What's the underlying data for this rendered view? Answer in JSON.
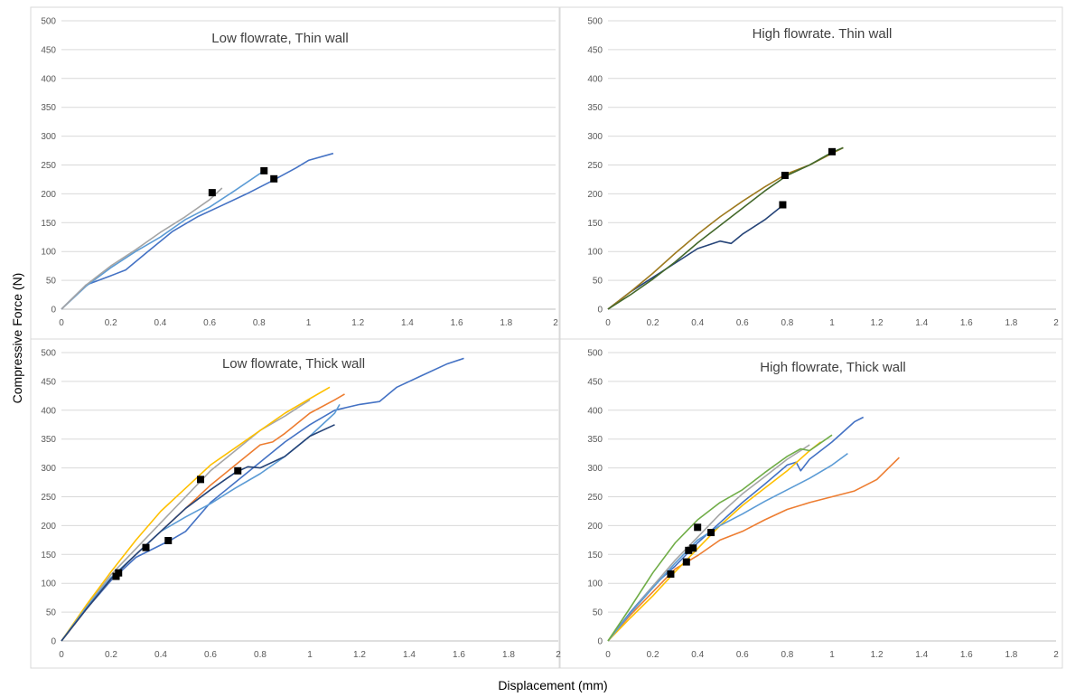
{
  "figure": {
    "ylabel": "Compressive Force (N)",
    "xlabel": "Displacement (mm)"
  },
  "chart_data": [
    {
      "type": "line",
      "title": "Low flowrate, Thin wall",
      "xlim": [
        0,
        2
      ],
      "ylim": [
        0,
        500
      ],
      "xticks": [
        "0",
        "0.2",
        "0.4",
        "0.6",
        "0.8",
        "1",
        "1.2",
        "1.4",
        "1.6",
        "1.8",
        "2"
      ],
      "yticks": [
        "0",
        "50",
        "100",
        "150",
        "200",
        "250",
        "300",
        "350",
        "400",
        "450",
        "500"
      ],
      "grid": true,
      "series": [
        {
          "color": "#4472C4",
          "points": [
            [
              0,
              0
            ],
            [
              0.1,
              42
            ],
            [
              0.2,
              58
            ],
            [
              0.26,
              68
            ],
            [
              0.35,
              100
            ],
            [
              0.45,
              135
            ],
            [
              0.55,
              160
            ],
            [
              0.65,
              180
            ],
            [
              0.75,
              200
            ],
            [
              0.85,
              222
            ],
            [
              0.95,
              245
            ],
            [
              1.0,
              258
            ],
            [
              1.1,
              270
            ]
          ],
          "marker": [
            0.86,
            226
          ]
        },
        {
          "color": "#5B9BD5",
          "points": [
            [
              0,
              0
            ],
            [
              0.1,
              40
            ],
            [
              0.2,
              72
            ],
            [
              0.3,
              100
            ],
            [
              0.4,
              125
            ],
            [
              0.5,
              155
            ],
            [
              0.6,
              177
            ],
            [
              0.7,
              205
            ],
            [
              0.82,
              240
            ]
          ],
          "marker": [
            0.82,
            240
          ]
        },
        {
          "color": "#A5A5A5",
          "points": [
            [
              0,
              0
            ],
            [
              0.1,
              42
            ],
            [
              0.2,
              75
            ],
            [
              0.3,
              103
            ],
            [
              0.4,
              133
            ],
            [
              0.5,
              160
            ],
            [
              0.6,
              190
            ],
            [
              0.65,
              210
            ]
          ],
          "marker": [
            0.61,
            202
          ]
        }
      ]
    },
    {
      "type": "line",
      "title": "High flowrate. Thin wall",
      "xlim": [
        0,
        2
      ],
      "ylim": [
        0,
        500
      ],
      "xticks": [
        "0",
        "0.2",
        "0.4",
        "0.6",
        "0.8",
        "1",
        "1.2",
        "1.4",
        "1.6",
        "1.8",
        "2"
      ],
      "yticks": [
        "0",
        "50",
        "100",
        "150",
        "200",
        "250",
        "300",
        "350",
        "400",
        "450",
        "500"
      ],
      "grid": true,
      "series": [
        {
          "color": "#264478",
          "points": [
            [
              0,
              0
            ],
            [
              0.1,
              30
            ],
            [
              0.2,
              55
            ],
            [
              0.3,
              80
            ],
            [
              0.4,
              105
            ],
            [
              0.5,
              118
            ],
            [
              0.55,
              114
            ],
            [
              0.6,
              130
            ],
            [
              0.7,
              155
            ],
            [
              0.78,
              180
            ]
          ],
          "marker": [
            0.78,
            181
          ]
        },
        {
          "color": "#9E7A1F",
          "points": [
            [
              0,
              0
            ],
            [
              0.1,
              30
            ],
            [
              0.2,
              62
            ],
            [
              0.3,
              97
            ],
            [
              0.4,
              130
            ],
            [
              0.5,
              160
            ],
            [
              0.6,
              187
            ],
            [
              0.7,
              212
            ],
            [
              0.8,
              235
            ],
            [
              0.9,
              250
            ],
            [
              1.0,
              270
            ],
            [
              1.05,
              280
            ]
          ],
          "marker": [
            0.79,
            232
          ]
        },
        {
          "color": "#43682B",
          "points": [
            [
              0,
              0
            ],
            [
              0.1,
              25
            ],
            [
              0.2,
              52
            ],
            [
              0.3,
              82
            ],
            [
              0.4,
              115
            ],
            [
              0.5,
              145
            ],
            [
              0.6,
              175
            ],
            [
              0.7,
              205
            ],
            [
              0.8,
              232
            ],
            [
              0.9,
              250
            ],
            [
              1.0,
              272
            ],
            [
              1.05,
              280
            ]
          ],
          "marker": [
            1.0,
            273
          ]
        }
      ]
    },
    {
      "type": "line",
      "title": "Low flowrate, Thick wall",
      "xlim": [
        0,
        2
      ],
      "ylim": [
        0,
        500
      ],
      "xticks": [
        "0",
        "0.2",
        "0.4",
        "0.6",
        "0.8",
        "1",
        "1.2",
        "1.4",
        "1.6",
        "1.8",
        "2"
      ],
      "yticks": [
        "0",
        "50",
        "100",
        "150",
        "200",
        "250",
        "300",
        "350",
        "400",
        "450",
        "500"
      ],
      "grid": true,
      "series": [
        {
          "color": "#4472C4",
          "points": [
            [
              0,
              0
            ],
            [
              0.1,
              55
            ],
            [
              0.2,
              105
            ],
            [
              0.3,
              145
            ],
            [
              0.44,
              175
            ],
            [
              0.5,
              190
            ],
            [
              0.6,
              240
            ],
            [
              0.7,
              275
            ],
            [
              0.8,
              310
            ],
            [
              0.9,
              345
            ],
            [
              1.0,
              375
            ],
            [
              1.1,
              400
            ],
            [
              1.2,
              410
            ],
            [
              1.28,
              415
            ],
            [
              1.35,
              440
            ],
            [
              1.45,
              460
            ],
            [
              1.55,
              480
            ],
            [
              1.62,
              490
            ]
          ],
          "marker": [
            0.43,
            174
          ]
        },
        {
          "color": "#ED7D31",
          "points": [
            [
              0,
              0
            ],
            [
              0.1,
              55
            ],
            [
              0.2,
              108
            ],
            [
              0.3,
              150
            ],
            [
              0.4,
              190
            ],
            [
              0.5,
              230
            ],
            [
              0.6,
              270
            ],
            [
              0.7,
              305
            ],
            [
              0.8,
              340
            ],
            [
              0.85,
              345
            ],
            [
              0.9,
              360
            ],
            [
              1.0,
              395
            ],
            [
              1.1,
              418
            ],
            [
              1.14,
              428
            ]
          ],
          "marker": [
            0.34,
            162
          ]
        },
        {
          "color": "#A5A5A5",
          "points": [
            [
              0,
              0
            ],
            [
              0.1,
              60
            ],
            [
              0.2,
              115
            ],
            [
              0.3,
              160
            ],
            [
              0.4,
              205
            ],
            [
              0.5,
              250
            ],
            [
              0.6,
              295
            ],
            [
              0.7,
              330
            ],
            [
              0.8,
              365
            ],
            [
              0.9,
              390
            ],
            [
              1.0,
              418
            ]
          ],
          "marker": [
            0.56,
            280
          ]
        },
        {
          "color": "#FFC000",
          "points": [
            [
              0,
              0
            ],
            [
              0.1,
              62
            ],
            [
              0.2,
              120
            ],
            [
              0.3,
              175
            ],
            [
              0.4,
              225
            ],
            [
              0.5,
              265
            ],
            [
              0.6,
              305
            ],
            [
              0.7,
              335
            ],
            [
              0.8,
              365
            ],
            [
              0.9,
              395
            ],
            [
              1.0,
              420
            ],
            [
              1.08,
              440
            ]
          ],
          "marker": [
            0.23,
            118
          ]
        },
        {
          "color": "#5B9BD5",
          "points": [
            [
              0,
              0
            ],
            [
              0.1,
              58
            ],
            [
              0.2,
              110
            ],
            [
              0.3,
              150
            ],
            [
              0.4,
              190
            ],
            [
              0.5,
              215
            ],
            [
              0.6,
              238
            ],
            [
              0.7,
              265
            ],
            [
              0.8,
              290
            ],
            [
              0.9,
              320
            ],
            [
              1.0,
              355
            ],
            [
              1.1,
              395
            ],
            [
              1.12,
              410
            ]
          ],
          "marker": [
            0.22,
            112
          ]
        },
        {
          "color": "#264478",
          "points": [
            [
              0,
              0
            ],
            [
              0.1,
              55
            ],
            [
              0.2,
              108
            ],
            [
              0.3,
              150
            ],
            [
              0.4,
              190
            ],
            [
              0.5,
              230
            ],
            [
              0.6,
              262
            ],
            [
              0.7,
              292
            ],
            [
              0.75,
              302
            ],
            [
              0.8,
              300
            ],
            [
              0.9,
              320
            ],
            [
              1.0,
              355
            ],
            [
              1.1,
              375
            ]
          ],
          "marker": [
            0.71,
            295
          ]
        }
      ]
    },
    {
      "type": "line",
      "title": "High flowrate, Thick wall",
      "xlim": [
        0,
        2
      ],
      "ylim": [
        0,
        500
      ],
      "xticks": [
        "0",
        "0.2",
        "0.4",
        "0.6",
        "0.8",
        "1",
        "1.2",
        "1.4",
        "1.6",
        "1.8",
        "2"
      ],
      "yticks": [
        "0",
        "50",
        "100",
        "150",
        "200",
        "250",
        "300",
        "350",
        "400",
        "450",
        "500"
      ],
      "grid": true,
      "series": [
        {
          "color": "#4472C4",
          "points": [
            [
              0,
              0
            ],
            [
              0.1,
              50
            ],
            [
              0.2,
              95
            ],
            [
              0.3,
              130
            ],
            [
              0.4,
              170
            ],
            [
              0.5,
              205
            ],
            [
              0.6,
              240
            ],
            [
              0.7,
              272
            ],
            [
              0.8,
              305
            ],
            [
              0.84,
              310
            ],
            [
              0.86,
              295
            ],
            [
              0.9,
              315
            ],
            [
              1.0,
              345
            ],
            [
              1.1,
              380
            ],
            [
              1.14,
              388
            ]
          ],
          "marker": [
            0.36,
            157
          ]
        },
        {
          "color": "#ED7D31",
          "points": [
            [
              0,
              0
            ],
            [
              0.1,
              45
            ],
            [
              0.2,
              85
            ],
            [
              0.3,
              125
            ],
            [
              0.4,
              148
            ],
            [
              0.5,
              175
            ],
            [
              0.6,
              190
            ],
            [
              0.7,
              210
            ],
            [
              0.8,
              228
            ],
            [
              0.9,
              240
            ],
            [
              1.0,
              250
            ],
            [
              1.1,
              260
            ],
            [
              1.2,
              280
            ],
            [
              1.3,
              318
            ]
          ],
          "marker": [
            0.35,
            137
          ]
        },
        {
          "color": "#A5A5A5",
          "points": [
            [
              0,
              0
            ],
            [
              0.1,
              48
            ],
            [
              0.2,
              95
            ],
            [
              0.3,
              140
            ],
            [
              0.4,
              180
            ],
            [
              0.5,
              220
            ],
            [
              0.6,
              255
            ],
            [
              0.7,
              285
            ],
            [
              0.8,
              315
            ],
            [
              0.9,
              340
            ]
          ],
          "marker": [
            0.38,
            161
          ]
        },
        {
          "color": "#FFC000",
          "points": [
            [
              0,
              0
            ],
            [
              0.1,
              40
            ],
            [
              0.2,
              78
            ],
            [
              0.3,
              120
            ],
            [
              0.4,
              160
            ],
            [
              0.5,
              200
            ],
            [
              0.6,
              235
            ],
            [
              0.7,
              265
            ],
            [
              0.8,
              295
            ],
            [
              0.9,
              330
            ],
            [
              0.95,
              345
            ]
          ],
          "marker": [
            0.28,
            116
          ]
        },
        {
          "color": "#5B9BD5",
          "points": [
            [
              0,
              0
            ],
            [
              0.1,
              48
            ],
            [
              0.2,
              92
            ],
            [
              0.3,
              135
            ],
            [
              0.4,
              175
            ],
            [
              0.5,
              200
            ],
            [
              0.6,
              220
            ],
            [
              0.7,
              242
            ],
            [
              0.8,
              262
            ],
            [
              0.9,
              282
            ],
            [
              1.0,
              305
            ],
            [
              1.07,
              325
            ]
          ],
          "marker": [
            0.46,
            188
          ]
        },
        {
          "color": "#70AD47",
          "points": [
            [
              0,
              0
            ],
            [
              0.1,
              58
            ],
            [
              0.2,
              118
            ],
            [
              0.3,
              170
            ],
            [
              0.4,
              210
            ],
            [
              0.5,
              240
            ],
            [
              0.6,
              262
            ],
            [
              0.7,
              292
            ],
            [
              0.8,
              320
            ],
            [
              0.86,
              333
            ],
            [
              0.9,
              330
            ],
            [
              1.0,
              357
            ]
          ],
          "marker": [
            0.4,
            197
          ]
        }
      ]
    }
  ]
}
